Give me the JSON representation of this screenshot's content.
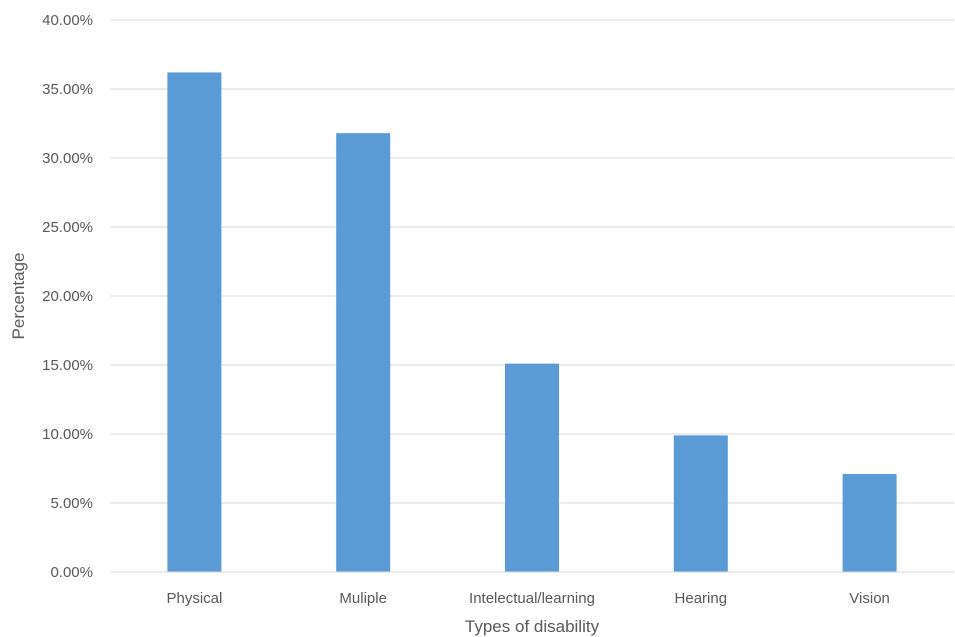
{
  "chart_data": {
    "type": "bar",
    "title": "",
    "xlabel": "Types of disability",
    "ylabel": "Percentage",
    "categories": [
      "Physical",
      "Muliple",
      "Intelectual/learning",
      "Hearing",
      "Vision"
    ],
    "values": [
      36.2,
      31.8,
      15.1,
      9.9,
      7.1
    ],
    "ylim": [
      0,
      40
    ],
    "ytick_labels": [
      "0.00%",
      "5.00%",
      "10.00%",
      "15.00%",
      "20.00%",
      "25.00%",
      "30.00%",
      "35.00%",
      "40.00%"
    ],
    "grid": true,
    "legend": "none",
    "bar_color": "#5b9bd5",
    "grid_color": "#d9d9d9"
  }
}
